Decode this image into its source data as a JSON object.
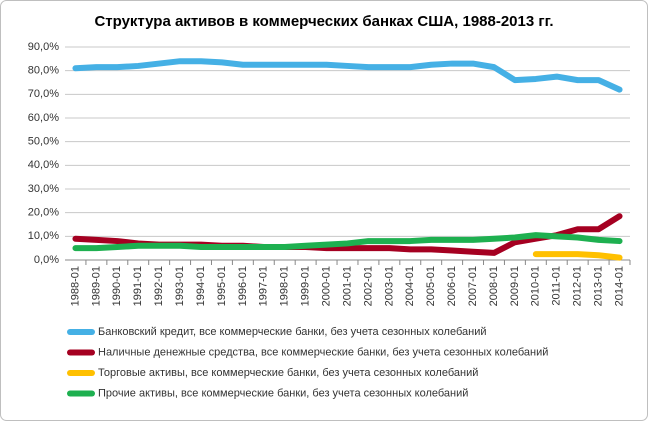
{
  "chart_data": {
    "type": "line",
    "title": "Структура активов в коммерческих банках США, 1988-2013 гг.",
    "categories": [
      "1988-01",
      "1989-01",
      "1990-01",
      "1991-01",
      "1992-01",
      "1993-01",
      "1994-01",
      "1995-01",
      "1996-01",
      "1997-01",
      "1998-01",
      "1999-01",
      "2000-01",
      "2001-01",
      "2002-01",
      "2003-01",
      "2004-01",
      "2005-01",
      "2006-01",
      "2007-01",
      "2008-01",
      "2009-01",
      "2010-01",
      "2011-01",
      "2012-01",
      "2013-01",
      "2014-01"
    ],
    "series": [
      {
        "name": "Банковский кредит, все коммерческие банки, без учета сезонных колебаний",
        "color": "#45b0e5",
        "values": [
          81,
          81.5,
          81.5,
          82,
          83,
          84,
          84,
          83.5,
          82.5,
          82.5,
          82.5,
          82.5,
          82.5,
          82,
          81.5,
          81.5,
          81.5,
          82.5,
          83,
          83,
          81.5,
          76,
          76.5,
          77.5,
          76,
          76,
          72
        ]
      },
      {
        "name": "Наличные денежные средства, все коммерческие банки, без учета сезонных колебаний",
        "color": "#a50021",
        "values": [
          9,
          8.5,
          8,
          7,
          6.5,
          6.5,
          6.5,
          6,
          6,
          5.5,
          5.5,
          5.5,
          5,
          5,
          5,
          5,
          4.5,
          4.5,
          4,
          3.5,
          3,
          7.5,
          9,
          10.5,
          13,
          13,
          18.5
        ]
      },
      {
        "name": "Торговые активы, все коммерческие банки, без учета сезонных колебаний",
        "color": "#ffc000",
        "values": [
          null,
          null,
          null,
          null,
          null,
          null,
          null,
          null,
          null,
          null,
          null,
          null,
          null,
          null,
          null,
          null,
          null,
          null,
          null,
          null,
          null,
          null,
          2.5,
          2.5,
          2.5,
          2,
          1
        ]
      },
      {
        "name": "Прочие активы, все коммерческие банки, без учета сезонных колебаний",
        "color": "#1eb050",
        "values": [
          5,
          5,
          5.5,
          6,
          6,
          6,
          5.5,
          5.5,
          5.5,
          5.5,
          5.5,
          6,
          6.5,
          7,
          8,
          8,
          8,
          8.5,
          8.5,
          8.5,
          9,
          9.5,
          10.5,
          10,
          9.5,
          8.5,
          8
        ]
      }
    ],
    "ylim": [
      0,
      90
    ],
    "yticks": [
      {
        "value": 0,
        "label": "0,0%"
      },
      {
        "value": 10,
        "label": "10,0%"
      },
      {
        "value": 20,
        "label": "20,0%"
      },
      {
        "value": 30,
        "label": "30,0%"
      },
      {
        "value": 40,
        "label": "40,0%"
      },
      {
        "value": 50,
        "label": "50,0%"
      },
      {
        "value": 60,
        "label": "60,0%"
      },
      {
        "value": 70,
        "label": "70,0%"
      },
      {
        "value": 80,
        "label": "80,0%"
      },
      {
        "value": 90,
        "label": "90,0%"
      }
    ],
    "grid": true
  }
}
